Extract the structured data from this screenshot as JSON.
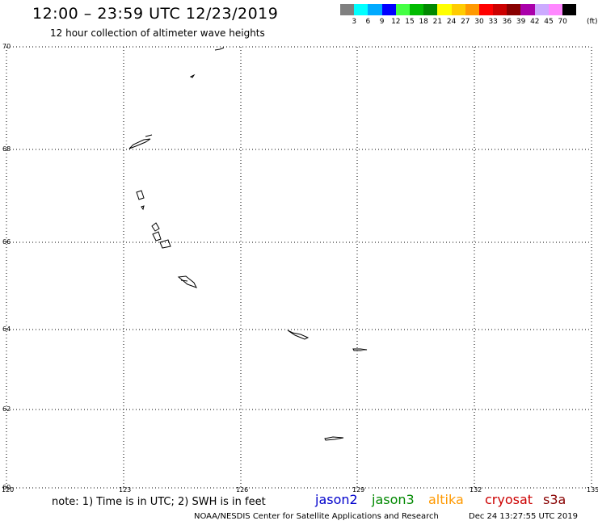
{
  "header": {
    "title": "12:00 – 23:59 UTC 12/23/2019",
    "subtitle": "12 hour collection of altimeter wave heights"
  },
  "color_scale": {
    "colors": [
      "#808080",
      "#00ffff",
      "#00aaff",
      "#0000ff",
      "#44ff44",
      "#00bb00",
      "#008800",
      "#ffff00",
      "#ffcc00",
      "#ff9900",
      "#ff0000",
      "#cc0000",
      "#880000",
      "#aa00aa",
      "#ccaaff",
      "#ff88ff",
      "#000000"
    ],
    "labels": [
      "3",
      "6",
      "9",
      "12",
      "15",
      "18",
      "21",
      "24",
      "27",
      "30",
      "33",
      "36",
      "39",
      "42",
      "45",
      "70"
    ],
    "unit": "(ft)"
  },
  "map": {
    "lat_labels": [
      "70",
      "68",
      "66",
      "64",
      "62",
      "60"
    ],
    "lon_labels": [
      "120",
      "123",
      "126",
      "129",
      "132",
      "135"
    ]
  },
  "footer": {
    "note": "note:  1) Time is in UTC;  2) SWH is in feet",
    "satellites": [
      {
        "name": "jason2",
        "color": "#0000cc"
      },
      {
        "name": "jason3",
        "color": "#008800"
      },
      {
        "name": "altika",
        "color": "#ff9900"
      },
      {
        "name": "cryosat",
        "color": "#cc0000"
      },
      {
        "name": "s3a",
        "color": "#880000"
      }
    ],
    "credit": "NOAA/NESDIS Center for Satellite Applications and Research",
    "timestamp": "Dec 24 13:27:55 UTC 2019"
  }
}
